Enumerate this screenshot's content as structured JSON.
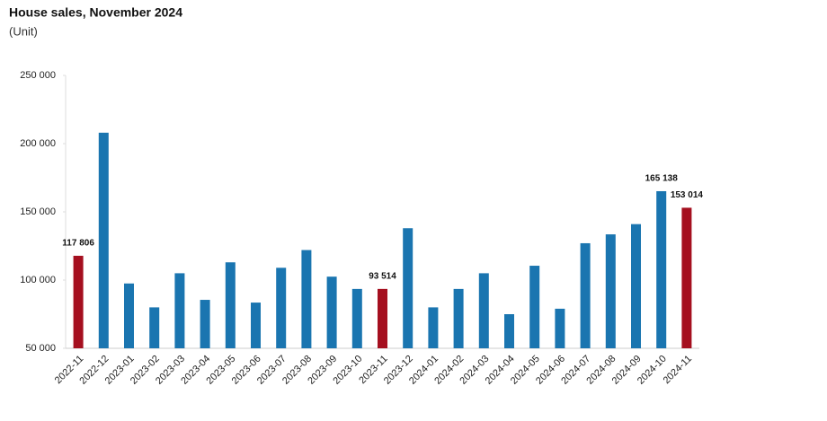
{
  "chart_data": {
    "type": "bar",
    "title": "House sales, November 2024",
    "subtitle": "(Unit)",
    "categories": [
      "2022-11",
      "2022-12",
      "2023-01",
      "2023-02",
      "2023-03",
      "2023-04",
      "2023-05",
      "2023-06",
      "2023-07",
      "2023-08",
      "2023-09",
      "2023-10",
      "2023-11",
      "2023-12",
      "2024-01",
      "2024-02",
      "2024-03",
      "2024-04",
      "2024-05",
      "2024-06",
      "2024-07",
      "2024-08",
      "2024-09",
      "2024-10",
      "2024-11"
    ],
    "values": [
      117806,
      208000,
      97500,
      80000,
      105000,
      85500,
      113000,
      83500,
      109000,
      122000,
      102500,
      93500,
      93514,
      138000,
      80000,
      93500,
      105000,
      75000,
      110500,
      79000,
      127000,
      133500,
      141000,
      165138,
      153014
    ],
    "value_labels": [
      "117 806",
      null,
      null,
      null,
      null,
      null,
      null,
      null,
      null,
      null,
      null,
      null,
      "93 514",
      null,
      null,
      null,
      null,
      null,
      null,
      null,
      null,
      null,
      null,
      "165 138",
      "153 014"
    ],
    "colors": [
      "#a50f1f",
      "#1a75b0",
      "#1a75b0",
      "#1a75b0",
      "#1a75b0",
      "#1a75b0",
      "#1a75b0",
      "#1a75b0",
      "#1a75b0",
      "#1a75b0",
      "#1a75b0",
      "#1a75b0",
      "#a50f1f",
      "#1a75b0",
      "#1a75b0",
      "#1a75b0",
      "#1a75b0",
      "#1a75b0",
      "#1a75b0",
      "#1a75b0",
      "#1a75b0",
      "#1a75b0",
      "#1a75b0",
      "#1a75b0",
      "#a50f1f"
    ],
    "ylim": [
      50000,
      250000
    ],
    "yticks": [
      {
        "value": 50000,
        "label": "50 000"
      },
      {
        "value": 100000,
        "label": "100 000"
      },
      {
        "value": 150000,
        "label": "150 000"
      },
      {
        "value": 200000,
        "label": "200 000"
      },
      {
        "value": 250000,
        "label": "250 000"
      }
    ],
    "grid": false
  }
}
